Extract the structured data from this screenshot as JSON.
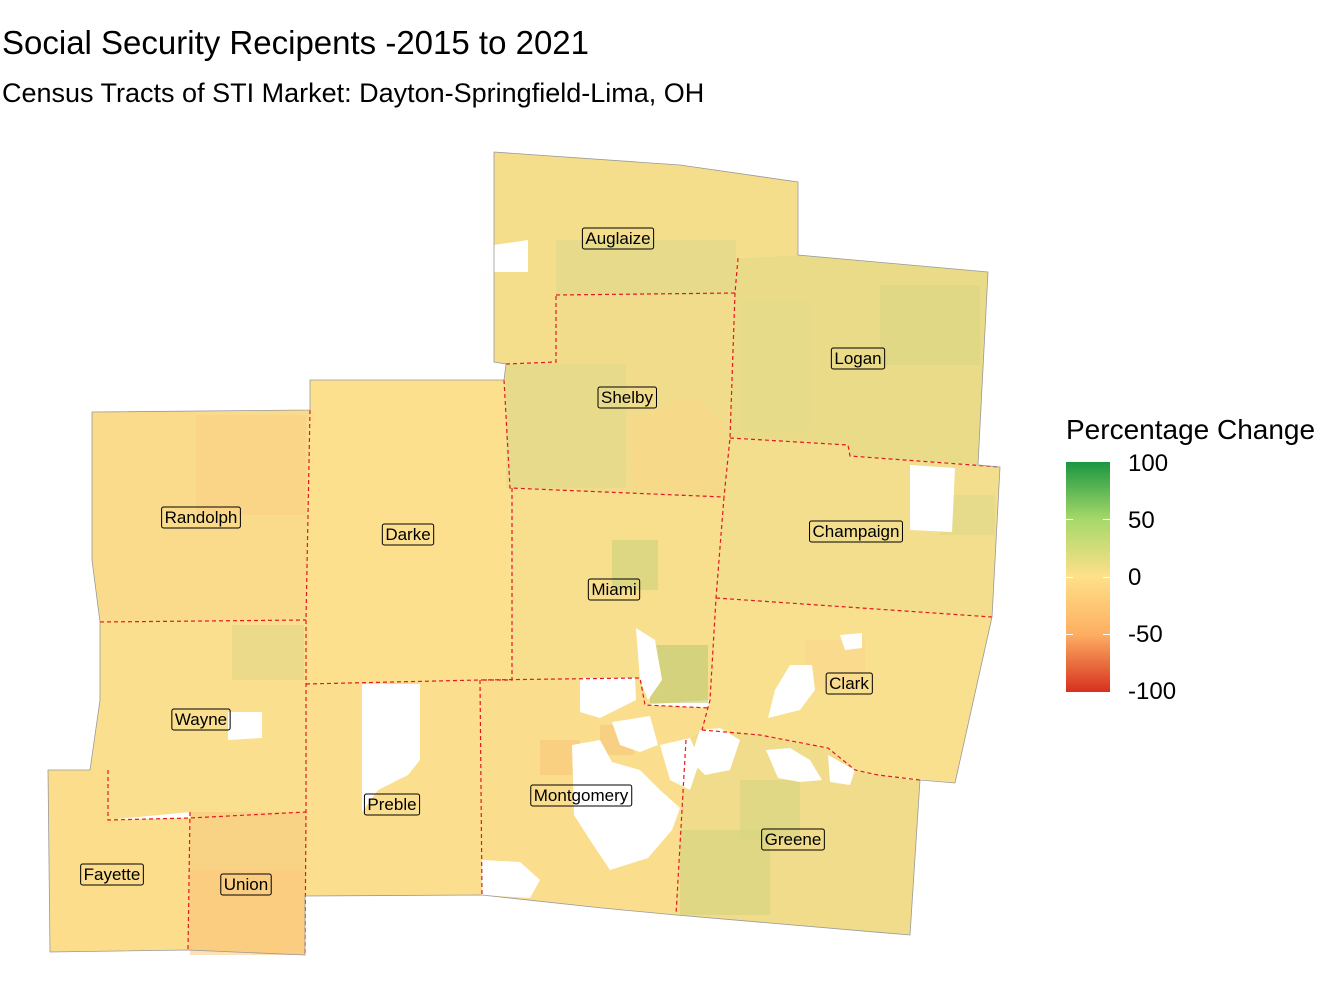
{
  "title": "Social Security Recipents -2015 to 2021",
  "subtitle": "Census Tracts of STI Market: Dayton-Springfield-Lima, OH",
  "legend": {
    "title": "Percentage Change",
    "ticks": [
      "100",
      "50",
      "0",
      "-50",
      "-100"
    ],
    "scale": {
      "min": -100,
      "max": 100,
      "low_color": "#d7301f",
      "mid_color": "#ffe08a",
      "high_color": "#1a9641"
    }
  },
  "counties": [
    {
      "name": "Auglaize",
      "value": 5
    },
    {
      "name": "Logan",
      "value": 12
    },
    {
      "name": "Shelby",
      "value": 8
    },
    {
      "name": "Randolph",
      "value": -5
    },
    {
      "name": "Darke",
      "value": 0
    },
    {
      "name": "Champaign",
      "value": 6
    },
    {
      "name": "Miami",
      "value": 3
    },
    {
      "name": "Clark",
      "value": 2
    },
    {
      "name": "Wayne",
      "value": 1
    },
    {
      "name": "Montgomery",
      "value": -2
    },
    {
      "name": "Preble",
      "value": -1
    },
    {
      "name": "Greene",
      "value": 8
    },
    {
      "name": "Fayette",
      "value": -3
    },
    {
      "name": "Union",
      "value": -12
    }
  ],
  "boundary_color": "#e31a1c",
  "no_data_color": "#ffffff"
}
